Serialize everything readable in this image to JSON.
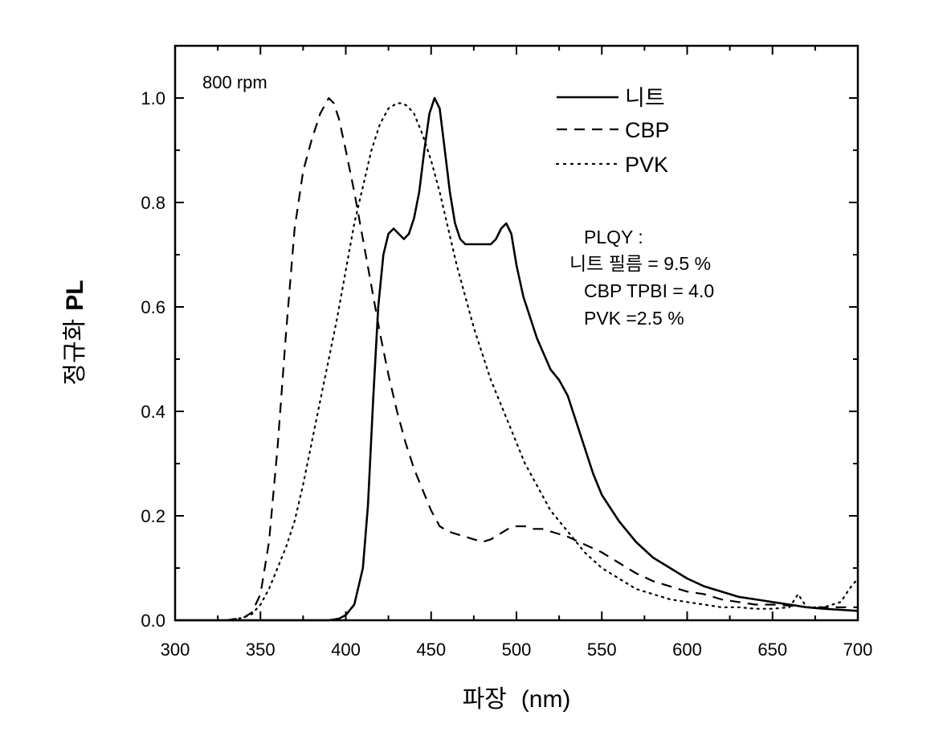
{
  "chart_data": {
    "type": "line",
    "title": "",
    "xlabel": "파장 (nm)",
    "ylabel": "정규화 PL",
    "ylabel_parts": [
      "정규화",
      "PL"
    ],
    "xlabel_parts": [
      "파장",
      "(nm)"
    ],
    "xlim": [
      300,
      700
    ],
    "ylim": [
      0,
      1.1
    ],
    "xticks": [
      300,
      350,
      400,
      450,
      500,
      550,
      600,
      650,
      700
    ],
    "xtick_labels": [
      "300",
      "350",
      "400",
      "450",
      "500",
      "550",
      "600",
      "650",
      "700"
    ],
    "yticks": [
      0.0,
      0.2,
      0.4,
      0.6,
      0.8,
      1.0
    ],
    "ytick_labels": [
      "0.0",
      "0.2",
      "0.4",
      "0.6",
      "0.8",
      "1.0"
    ],
    "grid": false,
    "legend_position": "top-right",
    "annotations": {
      "speed": "800 rpm",
      "plqy_title": "PLQY :",
      "plqy_lines": [
        "니트 필름 = 9.5 %",
        "CBP TPBI = 4.0",
        "PVK =2.5 %"
      ]
    },
    "series": [
      {
        "name": "니트",
        "style": "solid",
        "x": [
          300,
          390,
          396,
          400,
          405,
          410,
          413,
          416,
          419,
          422,
          425,
          428,
          431,
          434,
          437,
          440,
          443,
          446,
          449,
          452,
          455,
          458,
          461,
          464,
          467,
          470,
          473,
          476,
          479,
          482,
          485,
          488,
          491,
          494,
          497,
          500,
          504,
          508,
          512,
          516,
          520,
          525,
          530,
          535,
          540,
          545,
          550,
          560,
          570,
          580,
          590,
          600,
          610,
          620,
          630,
          640,
          650,
          660,
          670,
          680,
          690,
          700
        ],
        "y": [
          0.0,
          0.0,
          0.003,
          0.01,
          0.03,
          0.1,
          0.22,
          0.42,
          0.6,
          0.7,
          0.74,
          0.75,
          0.74,
          0.73,
          0.74,
          0.77,
          0.82,
          0.9,
          0.97,
          1.0,
          0.98,
          0.9,
          0.82,
          0.76,
          0.73,
          0.72,
          0.72,
          0.72,
          0.72,
          0.72,
          0.72,
          0.73,
          0.75,
          0.76,
          0.74,
          0.68,
          0.62,
          0.58,
          0.54,
          0.51,
          0.48,
          0.46,
          0.43,
          0.38,
          0.33,
          0.28,
          0.24,
          0.19,
          0.15,
          0.12,
          0.1,
          0.08,
          0.065,
          0.055,
          0.045,
          0.04,
          0.035,
          0.03,
          0.025,
          0.022,
          0.02,
          0.018
        ]
      },
      {
        "name": "CBP",
        "style": "dashed",
        "x": [
          330,
          340,
          345,
          350,
          355,
          360,
          365,
          370,
          375,
          380,
          385,
          390,
          393,
          396,
          400,
          405,
          410,
          415,
          420,
          425,
          430,
          435,
          440,
          445,
          450,
          455,
          460,
          465,
          470,
          475,
          480,
          485,
          490,
          495,
          500,
          505,
          510,
          515,
          520,
          530,
          540,
          550,
          560,
          570,
          580,
          590,
          600,
          610,
          620,
          630,
          640,
          650,
          660,
          670,
          680,
          690,
          700
        ],
        "y": [
          0.0,
          0.005,
          0.015,
          0.05,
          0.15,
          0.33,
          0.55,
          0.75,
          0.86,
          0.92,
          0.97,
          1.0,
          0.99,
          0.96,
          0.9,
          0.82,
          0.73,
          0.64,
          0.55,
          0.47,
          0.4,
          0.34,
          0.29,
          0.25,
          0.21,
          0.18,
          0.17,
          0.165,
          0.16,
          0.155,
          0.15,
          0.155,
          0.165,
          0.175,
          0.18,
          0.18,
          0.175,
          0.175,
          0.17,
          0.16,
          0.145,
          0.13,
          0.11,
          0.09,
          0.075,
          0.065,
          0.055,
          0.05,
          0.04,
          0.035,
          0.03,
          0.03,
          0.028,
          0.025,
          0.025,
          0.025,
          0.025
        ]
      },
      {
        "name": "PVK",
        "style": "dotted",
        "x": [
          330,
          340,
          345,
          350,
          355,
          360,
          365,
          370,
          375,
          380,
          385,
          390,
          395,
          400,
          405,
          410,
          415,
          420,
          425,
          430,
          433,
          436,
          440,
          445,
          450,
          455,
          460,
          465,
          470,
          475,
          480,
          485,
          490,
          495,
          500,
          505,
          510,
          515,
          520,
          530,
          540,
          550,
          560,
          570,
          580,
          590,
          600,
          610,
          620,
          630,
          640,
          650,
          660,
          665,
          670,
          680,
          690,
          695,
          700
        ],
        "y": [
          0.0,
          0.005,
          0.012,
          0.03,
          0.06,
          0.1,
          0.14,
          0.19,
          0.26,
          0.34,
          0.42,
          0.5,
          0.58,
          0.67,
          0.76,
          0.83,
          0.9,
          0.95,
          0.98,
          0.99,
          0.99,
          0.985,
          0.97,
          0.93,
          0.88,
          0.82,
          0.75,
          0.68,
          0.62,
          0.56,
          0.51,
          0.46,
          0.42,
          0.38,
          0.34,
          0.3,
          0.27,
          0.24,
          0.21,
          0.17,
          0.13,
          0.1,
          0.08,
          0.06,
          0.05,
          0.04,
          0.035,
          0.03,
          0.025,
          0.025,
          0.022,
          0.022,
          0.025,
          0.05,
          0.025,
          0.025,
          0.035,
          0.06,
          0.08
        ]
      }
    ]
  }
}
